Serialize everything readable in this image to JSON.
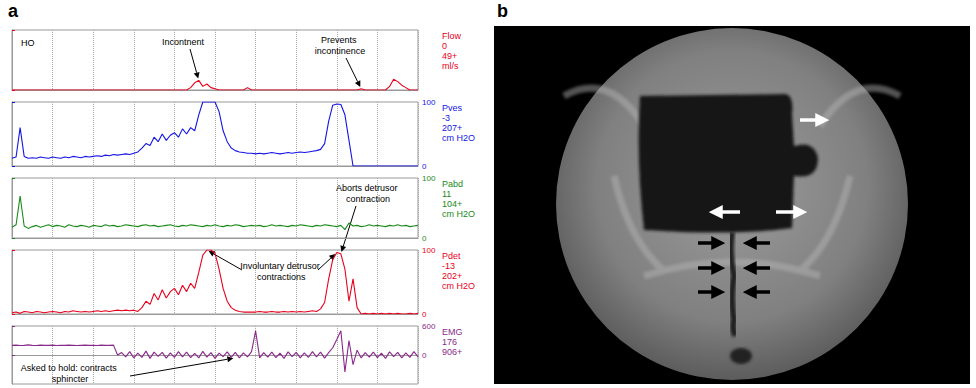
{
  "figure": {
    "panel_labels": [
      "a",
      "b"
    ]
  },
  "chart_data": [
    {
      "type": "line",
      "title": "HO",
      "x": [
        0,
        1,
        2,
        3,
        4,
        5,
        6,
        7,
        8,
        9,
        10,
        11,
        12,
        13,
        14,
        15,
        16,
        17,
        18,
        19,
        20,
        21,
        22,
        23,
        24,
        25,
        26,
        27,
        28,
        29,
        30,
        31,
        32,
        33,
        34,
        35,
        36,
        37,
        38,
        39,
        40,
        41,
        42,
        43,
        44,
        45,
        46,
        47,
        48,
        49,
        50,
        51,
        52,
        53,
        54,
        55,
        56,
        57,
        58,
        59,
        60,
        61,
        62,
        63,
        64,
        65,
        66,
        67,
        68,
        69,
        70,
        71,
        72,
        73,
        74,
        75,
        76,
        77,
        78,
        79,
        80,
        81,
        82,
        83,
        84,
        85,
        86,
        87,
        88,
        89,
        90,
        91,
        92,
        93,
        94,
        95,
        96,
        97,
        98,
        99,
        100
      ],
      "series": [
        {
          "name": "Flow",
          "color": "#e8001c",
          "values": [
            0,
            0,
            0,
            0,
            0,
            0,
            0,
            0,
            0,
            0,
            0,
            0,
            0,
            0,
            0,
            0,
            0,
            0,
            0,
            0,
            0,
            0,
            0,
            0,
            0,
            0,
            0,
            0,
            0,
            0,
            0,
            0,
            0,
            0,
            0,
            0,
            0,
            0,
            0,
            0,
            0,
            0,
            0,
            0,
            2,
            6,
            8,
            3,
            5,
            2,
            1,
            0,
            0,
            0,
            0,
            0,
            0,
            0,
            2,
            0,
            0,
            0,
            0,
            0,
            0,
            0,
            0,
            0,
            0,
            0,
            0,
            0,
            0,
            0,
            0,
            0,
            0,
            0,
            0,
            0,
            0,
            0,
            0,
            0,
            0,
            0,
            1,
            0,
            0,
            0,
            0,
            0,
            0,
            3,
            9,
            7,
            4,
            2,
            0,
            0,
            0
          ]
        }
      ],
      "readout": [
        "0",
        "49+"
      ],
      "unit": "ml/s",
      "xlim": [
        0,
        100
      ],
      "xticks": [
        0,
        10,
        20,
        30,
        40,
        50,
        60,
        70,
        80,
        90,
        100
      ],
      "ylim": [
        0,
        50
      ],
      "yticks": [
        0,
        50
      ],
      "grid": true,
      "tick_labels": false,
      "annotations": [
        {
          "text": "Incontnent",
          "points": [
            [
              46,
              8
            ]
          ]
        },
        {
          "text": "Prevents incontinence",
          "points": [
            [
              86,
              1
            ]
          ]
        }
      ]
    },
    {
      "type": "line",
      "x": [
        0,
        1,
        2,
        3,
        4,
        5,
        6,
        7,
        8,
        9,
        10,
        11,
        12,
        13,
        14,
        15,
        16,
        17,
        18,
        19,
        20,
        21,
        22,
        23,
        24,
        25,
        26,
        27,
        28,
        29,
        30,
        31,
        32,
        33,
        34,
        35,
        36,
        37,
        38,
        39,
        40,
        41,
        42,
        43,
        44,
        45,
        46,
        47,
        48,
        49,
        50,
        51,
        52,
        53,
        54,
        55,
        56,
        57,
        58,
        59,
        60,
        61,
        62,
        63,
        64,
        65,
        66,
        67,
        68,
        69,
        70,
        71,
        72,
        73,
        74,
        75,
        76,
        77,
        78,
        79,
        80,
        81,
        82,
        83,
        84,
        85,
        86,
        87,
        88,
        89,
        90,
        91,
        92,
        93,
        94,
        95,
        96,
        97,
        98,
        99,
        100
      ],
      "series": [
        {
          "name": "Pves",
          "color": "#1414e6",
          "values": [
            12,
            14,
            60,
            15,
            12,
            13,
            12,
            14,
            13,
            12,
            14,
            13,
            12,
            14,
            13,
            15,
            14,
            13,
            15,
            14,
            15,
            16,
            15,
            17,
            16,
            18,
            17,
            18,
            19,
            18,
            20,
            22,
            28,
            35,
            32,
            45,
            38,
            50,
            40,
            48,
            52,
            45,
            58,
            50,
            60,
            55,
            80,
            100,
            100,
            100,
            100,
            85,
            55,
            38,
            28,
            24,
            22,
            21,
            20,
            20,
            19,
            20,
            19,
            20,
            21,
            20,
            19,
            20,
            21,
            20,
            21,
            22,
            21,
            22,
            23,
            24,
            26,
            35,
            70,
            95,
            97,
            96,
            80,
            40,
            0,
            0,
            0,
            0,
            0,
            0,
            0,
            0,
            0,
            0,
            0,
            0,
            0,
            0,
            0,
            0,
            0
          ]
        }
      ],
      "readout": [
        "-3",
        "207+"
      ],
      "unit": "cm H2O",
      "xlim": [
        0,
        100
      ],
      "xticks": [
        0,
        10,
        20,
        30,
        40,
        50,
        60,
        70,
        80,
        90,
        100
      ],
      "ylim": [
        0,
        100
      ],
      "yticks": [
        0,
        100
      ],
      "grid": true,
      "tick_labels": "y"
    },
    {
      "type": "line",
      "x": [
        0,
        1,
        2,
        3,
        4,
        5,
        6,
        7,
        8,
        9,
        10,
        11,
        12,
        13,
        14,
        15,
        16,
        17,
        18,
        19,
        20,
        21,
        22,
        23,
        24,
        25,
        26,
        27,
        28,
        29,
        30,
        31,
        32,
        33,
        34,
        35,
        36,
        37,
        38,
        39,
        40,
        41,
        42,
        43,
        44,
        45,
        46,
        47,
        48,
        49,
        50,
        51,
        52,
        53,
        54,
        55,
        56,
        57,
        58,
        59,
        60,
        61,
        62,
        63,
        64,
        65,
        66,
        67,
        68,
        69,
        70,
        71,
        72,
        73,
        74,
        75,
        76,
        77,
        78,
        79,
        80,
        81,
        82,
        83,
        84,
        85,
        86,
        87,
        88,
        89,
        90,
        91,
        92,
        93,
        94,
        95,
        96,
        97,
        98,
        99,
        100
      ],
      "series": [
        {
          "name": "Pabd",
          "color": "#1a8a1a",
          "values": [
            18,
            22,
            70,
            20,
            16,
            19,
            21,
            18,
            20,
            22,
            19,
            21,
            20,
            18,
            22,
            20,
            19,
            21,
            20,
            18,
            21,
            20,
            19,
            22,
            20,
            21,
            19,
            20,
            22,
            21,
            20,
            19,
            21,
            22,
            20,
            21,
            19,
            20,
            21,
            22,
            20,
            19,
            21,
            20,
            22,
            21,
            20,
            19,
            21,
            20,
            22,
            20,
            19,
            21,
            20,
            22,
            21,
            19,
            20,
            21,
            20,
            21,
            19,
            20,
            22,
            20,
            21,
            20,
            19,
            21,
            20,
            22,
            21,
            20,
            19,
            21,
            20,
            22,
            21,
            20,
            19,
            21,
            14,
            25,
            20,
            21,
            19,
            20,
            22,
            20,
            21,
            20,
            19,
            21,
            20,
            22,
            20,
            21,
            19,
            20,
            21
          ]
        }
      ],
      "readout": [
        "11",
        "104+"
      ],
      "unit": "cm H2O",
      "xlim": [
        0,
        100
      ],
      "xticks": [
        0,
        10,
        20,
        30,
        40,
        50,
        60,
        70,
        80,
        90,
        100
      ],
      "ylim": [
        0,
        100
      ],
      "yticks": [
        0,
        100
      ],
      "grid": true,
      "tick_labels": "y"
    },
    {
      "type": "line",
      "x": [
        0,
        1,
        2,
        3,
        4,
        5,
        6,
        7,
        8,
        9,
        10,
        11,
        12,
        13,
        14,
        15,
        16,
        17,
        18,
        19,
        20,
        21,
        22,
        23,
        24,
        25,
        26,
        27,
        28,
        29,
        30,
        31,
        32,
        33,
        34,
        35,
        36,
        37,
        38,
        39,
        40,
        41,
        42,
        43,
        44,
        45,
        46,
        47,
        48,
        49,
        50,
        51,
        52,
        53,
        54,
        55,
        56,
        57,
        58,
        59,
        60,
        61,
        62,
        63,
        64,
        65,
        66,
        67,
        68,
        69,
        70,
        71,
        72,
        73,
        74,
        75,
        76,
        77,
        78,
        79,
        80,
        81,
        82,
        83,
        84,
        85,
        86,
        87,
        88,
        89,
        90,
        91,
        92,
        93,
        94,
        95,
        96,
        97,
        98,
        99,
        100
      ],
      "series": [
        {
          "name": "Pdet",
          "color": "#e8001c",
          "values": [
            2,
            3,
            1,
            4,
            3,
            2,
            4,
            3,
            2,
            3,
            4,
            3,
            2,
            4,
            3,
            5,
            4,
            3,
            4,
            3,
            4,
            5,
            4,
            5,
            4,
            5,
            6,
            5,
            6,
            5,
            6,
            4,
            10,
            20,
            15,
            32,
            22,
            38,
            25,
            35,
            40,
            30,
            45,
            35,
            48,
            40,
            65,
            92,
            100,
            100,
            95,
            70,
            40,
            20,
            10,
            6,
            4,
            3,
            3,
            3,
            3,
            4,
            3,
            3,
            4,
            3,
            3,
            4,
            3,
            4,
            3,
            4,
            3,
            4,
            5,
            4,
            8,
            18,
            55,
            85,
            96,
            94,
            70,
            20,
            55,
            10,
            0,
            1,
            0,
            1,
            0,
            1,
            0,
            1,
            0,
            1,
            0,
            0,
            1,
            0,
            1
          ]
        }
      ],
      "readout": [
        "-13",
        "202+"
      ],
      "unit": "cm H2O",
      "xlim": [
        0,
        100
      ],
      "xticks": [
        0,
        10,
        20,
        30,
        40,
        50,
        60,
        70,
        80,
        90,
        100
      ],
      "ylim": [
        0,
        100
      ],
      "yticks": [
        0,
        100
      ],
      "grid": true,
      "tick_labels": "y",
      "annotations": [
        {
          "text": "Aborts detrusor contraction",
          "points": [
            [
              81,
              94
            ]
          ]
        },
        {
          "text": "Involuntary detrusor contractions",
          "points": [
            [
              48,
              100
            ],
            [
              80,
              96
            ]
          ]
        }
      ]
    },
    {
      "type": "line",
      "x": [
        0,
        1,
        2,
        3,
        4,
        5,
        6,
        7,
        8,
        9,
        10,
        11,
        12,
        13,
        14,
        15,
        16,
        17,
        18,
        19,
        20,
        21,
        22,
        23,
        24,
        25,
        26,
        27,
        28,
        29,
        30,
        31,
        32,
        33,
        34,
        35,
        36,
        37,
        38,
        39,
        40,
        41,
        42,
        43,
        44,
        45,
        46,
        47,
        48,
        49,
        50,
        51,
        52,
        53,
        54,
        55,
        56,
        57,
        58,
        59,
        60,
        61,
        62,
        63,
        64,
        65,
        66,
        67,
        68,
        69,
        70,
        71,
        72,
        73,
        74,
        75,
        76,
        77,
        78,
        79,
        80,
        81,
        82,
        83,
        84,
        85,
        86,
        87,
        88,
        89,
        90,
        91,
        92,
        93,
        94,
        95,
        96,
        97,
        98,
        99,
        100
      ],
      "series": [
        {
          "name": "EMG",
          "color": "#8a2a8a",
          "values": [
            200,
            205,
            195,
            200,
            210,
            200,
            195,
            205,
            200,
            200,
            205,
            195,
            200,
            200,
            205,
            200,
            195,
            200,
            205,
            200,
            200,
            195,
            205,
            200,
            200,
            205,
            0,
            50,
            -40,
            70,
            -60,
            40,
            -50,
            80,
            -70,
            60,
            -30,
            55,
            -65,
            45,
            -50,
            70,
            -40,
            60,
            -55,
            35,
            -60,
            75,
            -45,
            50,
            -70,
            40,
            -35,
            65,
            -50,
            55,
            -60,
            45,
            -40,
            70,
            500,
            -60,
            50,
            -45,
            60,
            -55,
            40,
            -70,
            65,
            -35,
            55,
            -60,
            45,
            -50,
            70,
            -40,
            60,
            -65,
            50,
            150,
            320,
            500,
            -350,
            300,
            -200,
            100,
            -60,
            50,
            -45,
            60,
            -55,
            40,
            -70,
            65,
            -35,
            55,
            -60,
            45,
            -50,
            70,
            -40
          ]
        }
      ],
      "readout": [
        "176",
        "906+"
      ],
      "xlim": [
        0,
        100
      ],
      "xticks": [
        0,
        10,
        20,
        30,
        40,
        50,
        60,
        70,
        80,
        90,
        100
      ],
      "ylim": [
        -600,
        600
      ],
      "yticks": [
        0,
        600
      ],
      "grid": true,
      "tick_labels": "y",
      "annotations": [
        {
          "text": "Asked to hold: contracts sphincter",
          "points": [
            [
              55,
              -60
            ]
          ]
        }
      ]
    }
  ]
}
